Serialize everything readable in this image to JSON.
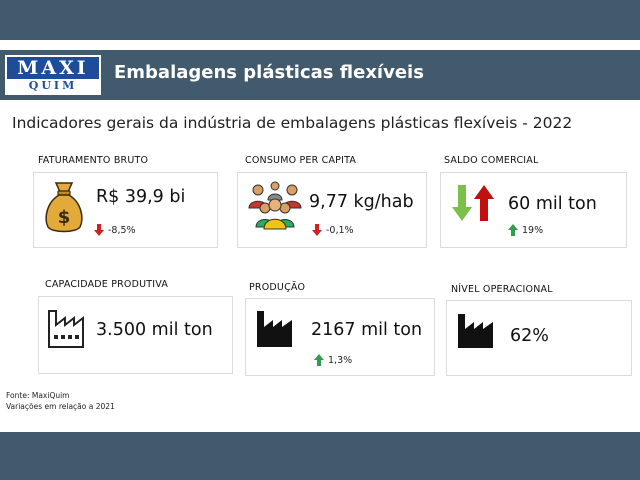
{
  "header": {
    "logo_top": "MAXI",
    "logo_bottom": "QUIM",
    "title": "Embalagens plásticas flexíveis"
  },
  "subtitle": "Indicadores gerais da indústria de embalagens plásticas flexíveis - 2022",
  "indicators": [
    {
      "label": "FATURAMENTO BRUTO",
      "value": "R$ 39,9 bi",
      "change": "-8,5%",
      "direction": "down",
      "icon": "money-bag-icon"
    },
    {
      "label": "CONSUMO PER CAPITA",
      "value": "9,77 kg/hab",
      "change": "-0,1%",
      "direction": "down",
      "icon": "people-group-icon"
    },
    {
      "label": "SALDO COMERCIAL",
      "value": "60 mil ton",
      "change": "19%",
      "direction": "up",
      "icon": "trade-arrows-icon"
    },
    {
      "label": "CAPACIDADE PRODUTIVA",
      "value": "3.500 mil ton",
      "change": "",
      "direction": "",
      "icon": "factory-outline-icon"
    },
    {
      "label": "PRODUÇÃO",
      "value": "2167 mil ton",
      "change": "1,3%",
      "direction": "up",
      "icon": "factory-icon"
    },
    {
      "label": "NÍVEL OPERACIONAL",
      "value": "62%",
      "change": "",
      "direction": "",
      "icon": "factory-icon"
    }
  ],
  "footer": {
    "source": "Fonte: MaxiQuim",
    "note": "Variações em relação a 2021"
  },
  "colors": {
    "banner": "#425a6e",
    "logo_blue": "#1f4c99",
    "up_arrow": "#2e9e4f",
    "down_arrow": "#d42020",
    "trade_up": "#c01010",
    "trade_down": "#7cc04a"
  }
}
